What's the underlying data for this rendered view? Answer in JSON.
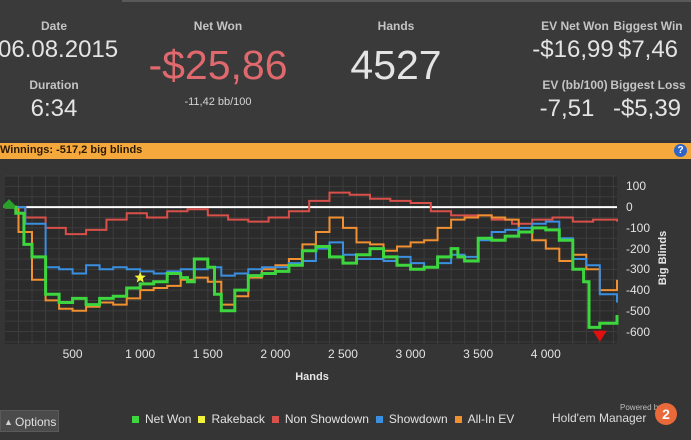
{
  "stats": {
    "date_label": "Date",
    "date_value": "06.08.2015",
    "duration_label": "Duration",
    "duration_value": "6:34",
    "net_won_label": "Net Won",
    "net_won_value": "-$25,86",
    "net_won_bb": "-11,42 bb/100",
    "hands_label": "Hands",
    "hands_value": "4527",
    "ev_net_won_label": "EV Net Won",
    "ev_net_won_value": "-$16,99",
    "ev_bb_label": "EV (bb/100)",
    "ev_bb_value": "-7,51",
    "biggest_win_label": "Biggest Win",
    "biggest_win_value": "$7,46",
    "biggest_loss_label": "Biggest Loss",
    "biggest_loss_value": "-$5,39"
  },
  "winnings_bar": {
    "text": "Winnings:  -517,2 big blinds",
    "help": "?"
  },
  "options_button": {
    "label": "Options",
    "icon": "caret-icon"
  },
  "branding": {
    "powered": "Powered by",
    "name": "Hold'em Manager",
    "version": "2"
  },
  "colors": {
    "net_won": "#3ed63e",
    "rakeback": "#f2f23a",
    "non_showdown": "#d9504a",
    "showdown": "#3a8fe0",
    "all_in_ev": "#f09030",
    "winnings_bar": "#f5a83c"
  },
  "chart_data": {
    "type": "line",
    "xlabel": "Hands",
    "ylabel": "Big Blinds",
    "xlim": [
      0,
      4527
    ],
    "ylim": [
      -660,
      150
    ],
    "x_ticks": [
      "500",
      "1 000",
      "1 500",
      "2 000",
      "2 500",
      "3 000",
      "3 500",
      "4 000"
    ],
    "x_tick_values": [
      500,
      1000,
      1500,
      2000,
      2500,
      3000,
      3500,
      4000
    ],
    "y_ticks": [
      "100",
      "0",
      "-100",
      "-200",
      "-300",
      "-400",
      "-500",
      "-600"
    ],
    "y_tick_values": [
      100,
      0,
      -100,
      -200,
      -300,
      -400,
      -500,
      -600
    ],
    "grid": true,
    "legend_position": "bottom",
    "series": [
      {
        "name": "Net Won",
        "x": [
          0,
          80,
          140,
          200,
          300,
          400,
          500,
          600,
          700,
          800,
          900,
          1000,
          1100,
          1200,
          1300,
          1350,
          1400,
          1500,
          1550,
          1600,
          1700,
          1800,
          1900,
          2000,
          2100,
          2200,
          2300,
          2400,
          2500,
          2600,
          2700,
          2800,
          2900,
          3000,
          3100,
          3200,
          3300,
          3350,
          3400,
          3500,
          3600,
          3700,
          3800,
          3900,
          4000,
          4100,
          4200,
          4280,
          4320,
          4400,
          4527
        ],
        "y": [
          0,
          -30,
          -180,
          -240,
          -420,
          -460,
          -440,
          -470,
          -440,
          -430,
          -390,
          -370,
          -360,
          -320,
          -340,
          -360,
          -250,
          -290,
          -420,
          -500,
          -400,
          -330,
          -320,
          -310,
          -280,
          -210,
          -190,
          -240,
          -270,
          -230,
          -200,
          -240,
          -280,
          -300,
          -290,
          -240,
          -200,
          -240,
          -260,
          -150,
          -160,
          -140,
          -120,
          -100,
          -110,
          -160,
          -300,
          -360,
          -580,
          -560,
          -520
        ]
      },
      {
        "name": "Rakeback",
        "x": [
          1000
        ],
        "y": [
          -340
        ]
      },
      {
        "name": "Non Showdown",
        "x": [
          0,
          150,
          300,
          450,
          600,
          750,
          900,
          1050,
          1200,
          1350,
          1500,
          1650,
          1800,
          1950,
          2100,
          2250,
          2400,
          2550,
          2700,
          2850,
          3000,
          3150,
          3300,
          3450,
          3600,
          3750,
          3900,
          4050,
          4200,
          4350,
          4527
        ],
        "y": [
          0,
          -50,
          -100,
          -130,
          -110,
          -60,
          -30,
          -50,
          -20,
          -10,
          -40,
          -60,
          -70,
          -50,
          -20,
          30,
          70,
          60,
          40,
          30,
          20,
          -20,
          -40,
          -40,
          -60,
          -80,
          -60,
          -50,
          -70,
          -60,
          -70
        ]
      },
      {
        "name": "Showdown",
        "x": [
          0,
          150,
          300,
          400,
          500,
          600,
          700,
          800,
          900,
          1000,
          1100,
          1200,
          1300,
          1400,
          1500,
          1600,
          1700,
          1800,
          1900,
          2000,
          2100,
          2200,
          2300,
          2400,
          2500,
          2600,
          2700,
          2800,
          2900,
          3000,
          3100,
          3200,
          3300,
          3400,
          3500,
          3600,
          3700,
          3800,
          3900,
          4000,
          4100,
          4200,
          4300,
          4400,
          4527
        ],
        "y": [
          0,
          -80,
          -290,
          -300,
          -320,
          -280,
          -300,
          -290,
          -300,
          -310,
          -320,
          -310,
          -300,
          -300,
          -290,
          -330,
          -320,
          -300,
          -290,
          -290,
          -270,
          -260,
          -200,
          -170,
          -230,
          -250,
          -250,
          -260,
          -240,
          -270,
          -290,
          -270,
          -230,
          -240,
          -160,
          -120,
          -110,
          -100,
          -80,
          -70,
          -150,
          -250,
          -280,
          -420,
          -460
        ]
      },
      {
        "name": "All-In EV",
        "x": [
          0,
          100,
          200,
          300,
          400,
          500,
          600,
          700,
          800,
          900,
          1000,
          1100,
          1200,
          1300,
          1400,
          1500,
          1600,
          1700,
          1800,
          1900,
          2000,
          2100,
          2200,
          2300,
          2400,
          2500,
          2600,
          2700,
          2800,
          2900,
          3000,
          3100,
          3200,
          3300,
          3400,
          3500,
          3600,
          3700,
          3800,
          3900,
          4000,
          4100,
          4200,
          4300,
          4400,
          4527
        ],
        "y": [
          0,
          -120,
          -350,
          -450,
          -490,
          -500,
          -480,
          -460,
          -470,
          -440,
          -400,
          -390,
          -380,
          -350,
          -340,
          -360,
          -470,
          -430,
          -340,
          -300,
          -280,
          -250,
          -180,
          -120,
          -50,
          -100,
          -170,
          -180,
          -210,
          -190,
          -170,
          -160,
          -100,
          -60,
          -50,
          -40,
          -50,
          -60,
          -120,
          -160,
          -200,
          -260,
          -230,
          -300,
          -400,
          -350
        ]
      }
    ],
    "markers": [
      {
        "name": "start",
        "x": 0,
        "y": 0,
        "color": "#2aa02a"
      },
      {
        "name": "rakeback-star",
        "x": 1000,
        "y": -340,
        "color": "#f2f23a"
      },
      {
        "name": "end",
        "x": 4400,
        "y": -620,
        "color": "#e01010"
      }
    ]
  }
}
